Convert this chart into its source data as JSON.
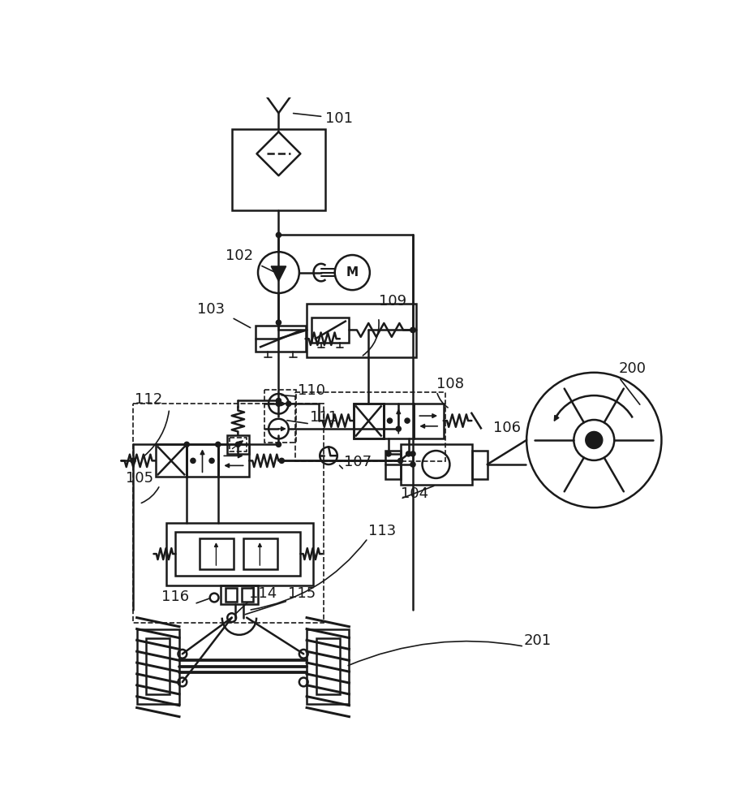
{
  "bg": "#ffffff",
  "lc": "#1a1a1a",
  "lw": 1.8,
  "lw_thin": 1.2
}
